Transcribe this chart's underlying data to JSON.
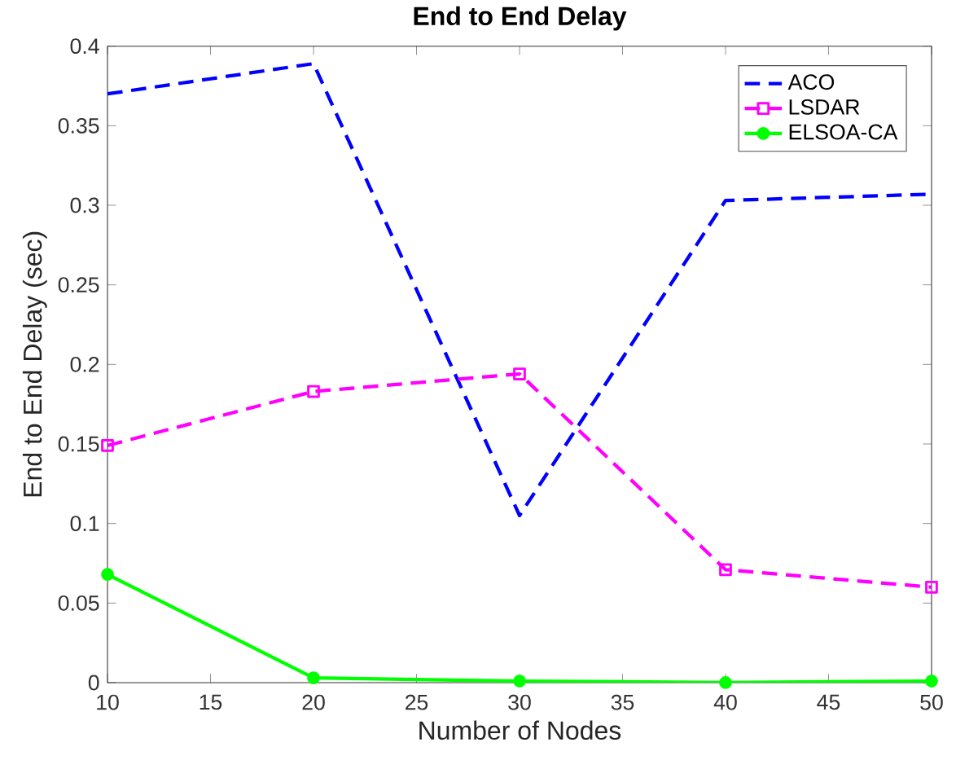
{
  "chart_data": {
    "type": "line",
    "title": "**End to End Delay**",
    "xlabel": "Number of Nodes",
    "ylabel": "End to End Delay (sec)",
    "x": [
      10,
      20,
      30,
      40,
      50
    ],
    "series": [
      {
        "name": "ACO",
        "color": "#0000ff",
        "values": [
          0.37,
          0.389,
          0.105,
          0.303,
          0.307
        ],
        "marker": "none",
        "line_style": "dashed"
      },
      {
        "name": "LSDAR",
        "color": "#ff00ff",
        "values": [
          0.149,
          0.183,
          0.194,
          0.071,
          0.06
        ],
        "marker": "square",
        "line_style": "dashed"
      },
      {
        "name": "ELSOA-CA",
        "color": "#00ff00",
        "values": [
          0.068,
          0.003,
          0.001,
          0.0,
          0.001
        ],
        "marker": "circle",
        "line_style": "solid"
      }
    ],
    "xlim": [
      10,
      50
    ],
    "ylim": [
      0,
      0.4
    ],
    "xticks": [
      10,
      15,
      20,
      25,
      30,
      35,
      40,
      45,
      50
    ],
    "yticks": [
      0,
      0.05,
      0.1,
      0.15,
      0.2,
      0.25,
      0.3,
      0.35,
      0.4
    ],
    "legend": "top right"
  }
}
